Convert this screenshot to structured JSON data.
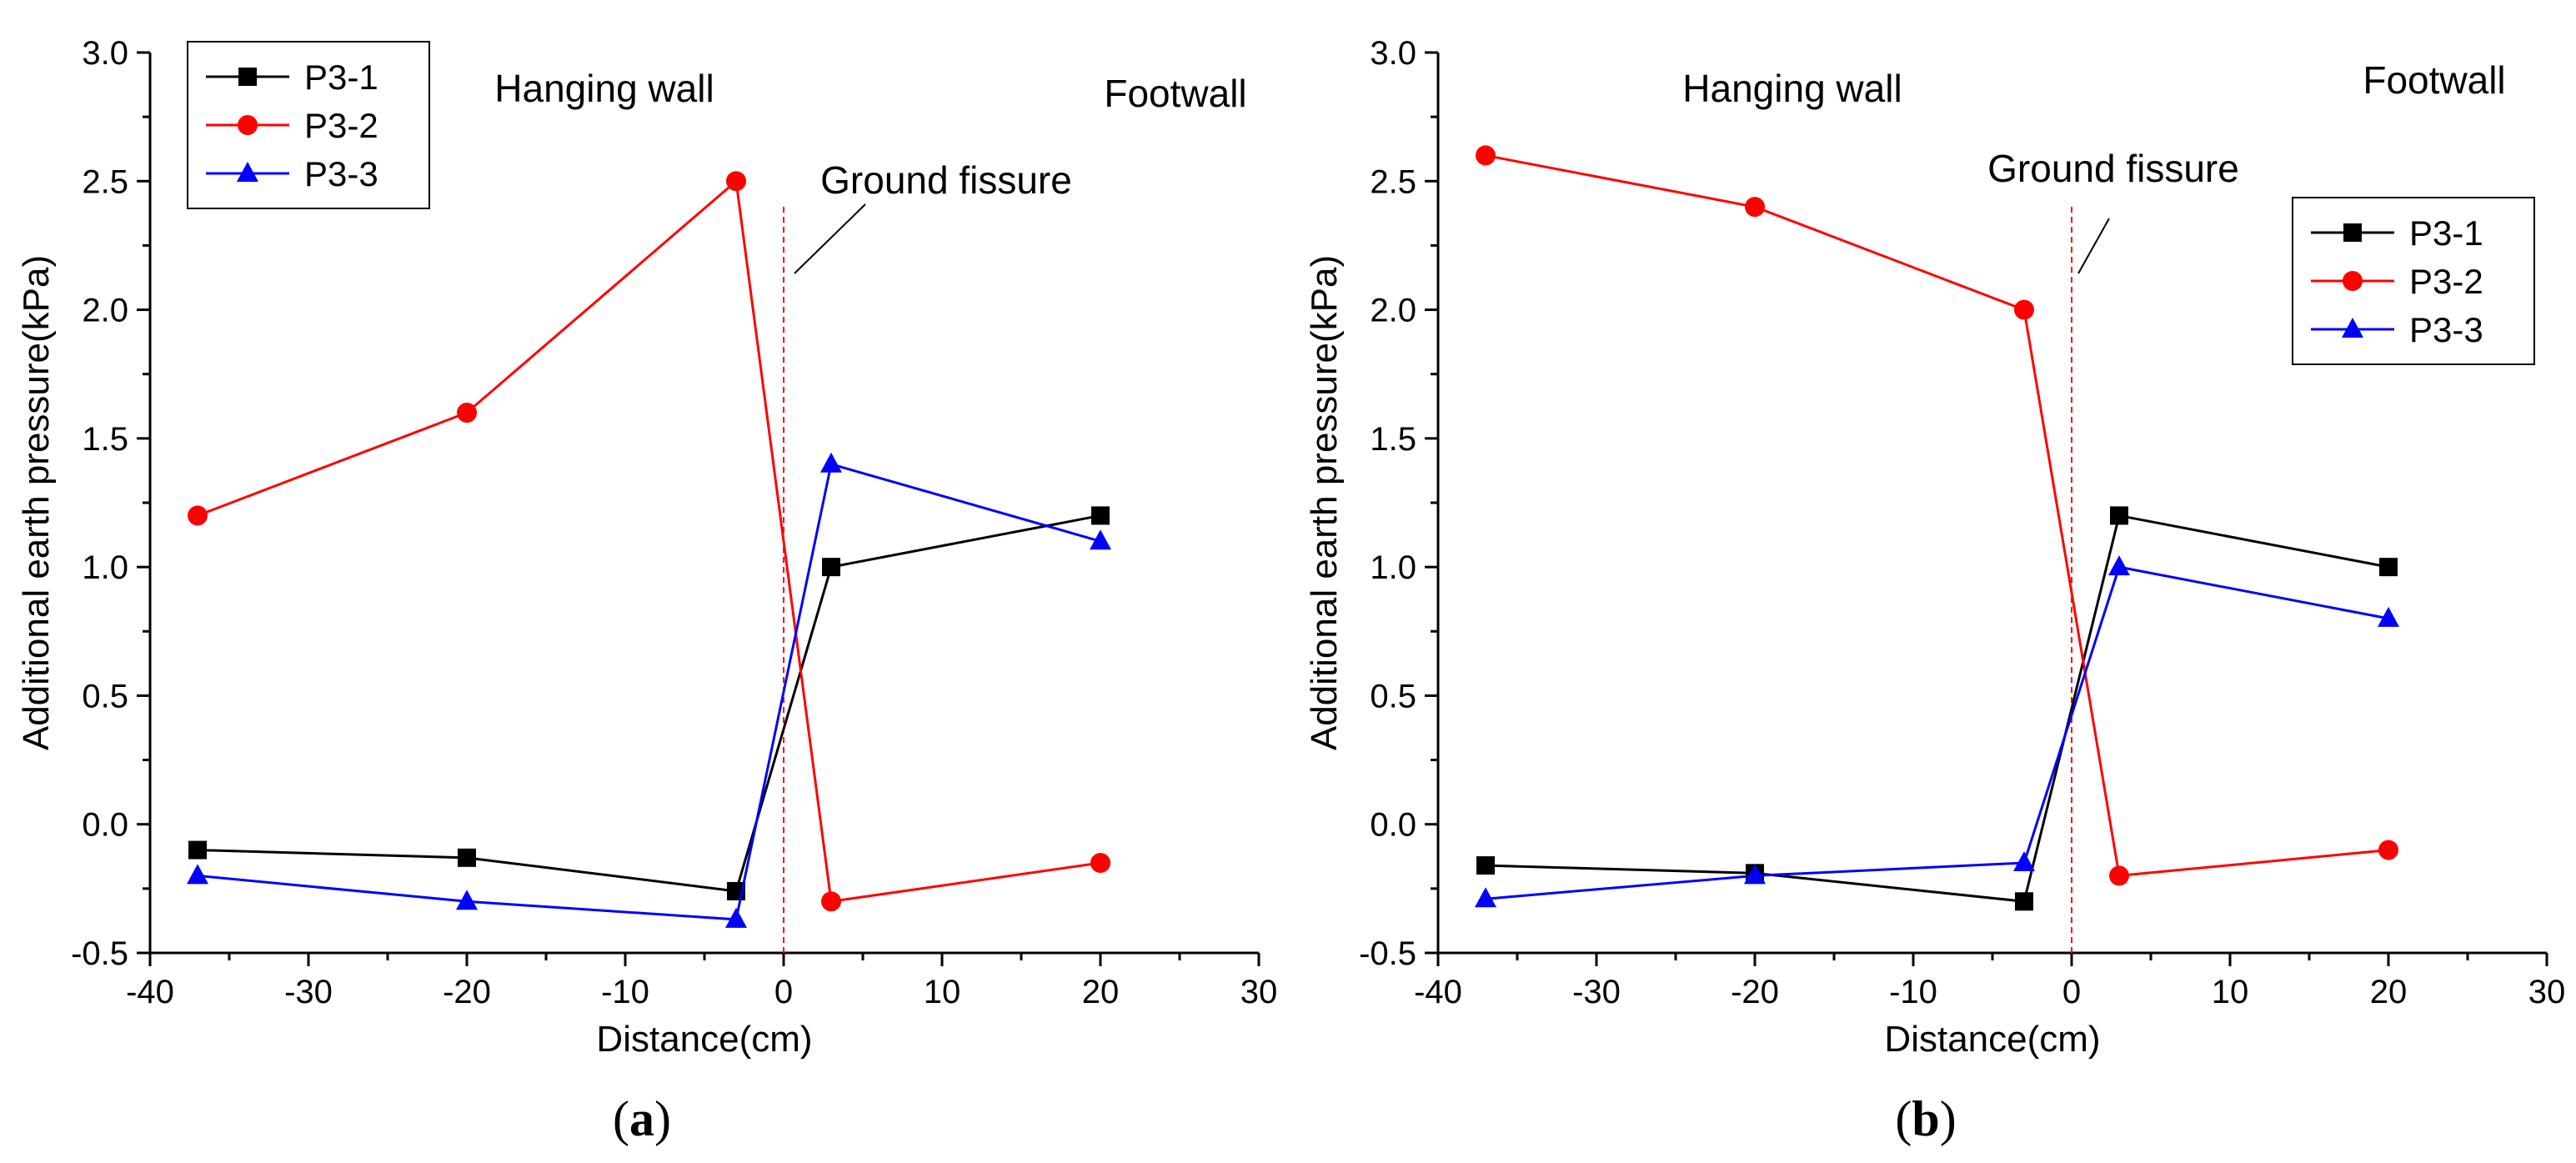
{
  "chart_data": [
    {
      "id": "a",
      "type": "line",
      "panel_label": "a",
      "xlabel": "Distance(cm)",
      "ylabel": "Additional earth pressure(kPa)",
      "xlim": [
        -40,
        30
      ],
      "ylim": [
        -0.5,
        3.0
      ],
      "x_ticks": [
        "-40",
        "-30",
        "-20",
        "-10",
        "0",
        "10",
        "20",
        "30"
      ],
      "y_ticks": [
        "-0.5",
        "0.0",
        "0.5",
        "1.0",
        "1.5",
        "2.0",
        "2.5",
        "3.0"
      ],
      "x_tick_values": [
        -40,
        -30,
        -20,
        -10,
        0,
        10,
        20,
        30
      ],
      "y_tick_values": [
        -0.5,
        0.0,
        0.5,
        1.0,
        1.5,
        2.0,
        2.5,
        3.0
      ],
      "legend_position": "top-left",
      "annotations": {
        "hanging_wall": "Hanging wall",
        "footwall": "Footwall",
        "ground_fissure": "Ground fissure"
      },
      "fissure_x": 0,
      "series": [
        {
          "name": "P3-1",
          "color": "#000000",
          "marker": "square",
          "x": [
            -37,
            -20,
            -3,
            3,
            20
          ],
          "y": [
            -0.1,
            -0.13,
            -0.26,
            1.0,
            1.2
          ]
        },
        {
          "name": "P3-2",
          "color": "#ff0000",
          "marker": "circle",
          "x": [
            -37,
            -20,
            -3,
            3,
            20
          ],
          "y": [
            1.2,
            1.6,
            2.5,
            -0.3,
            -0.15
          ]
        },
        {
          "name": "P3-3",
          "color": "#0000ff",
          "marker": "triangle",
          "x": [
            -37,
            -20,
            -3,
            3,
            20
          ],
          "y": [
            -0.2,
            -0.3,
            -0.37,
            1.4,
            1.1
          ]
        }
      ]
    },
    {
      "id": "b",
      "type": "line",
      "panel_label": "b",
      "xlabel": "Distance(cm)",
      "ylabel": "Additional earth pressure(kPa)",
      "xlim": [
        -40,
        30
      ],
      "ylim": [
        -0.5,
        3.0
      ],
      "x_ticks": [
        "-40",
        "-30",
        "-20",
        "-10",
        "0",
        "10",
        "20",
        "30"
      ],
      "y_ticks": [
        "-0.5",
        "0.0",
        "0.5",
        "1.0",
        "1.5",
        "2.0",
        "2.5",
        "3.0"
      ],
      "x_tick_values": [
        -40,
        -30,
        -20,
        -10,
        0,
        10,
        20,
        30
      ],
      "y_tick_values": [
        -0.5,
        0.0,
        0.5,
        1.0,
        1.5,
        2.0,
        2.5,
        3.0
      ],
      "legend_position": "right",
      "annotations": {
        "hanging_wall": "Hanging wall",
        "footwall": "Footwall",
        "ground_fissure": "Ground fissure"
      },
      "fissure_x": 0,
      "series": [
        {
          "name": "P3-1",
          "color": "#000000",
          "marker": "square",
          "x": [
            -37,
            -20,
            -3,
            3,
            20
          ],
          "y": [
            -0.16,
            -0.19,
            -0.3,
            1.2,
            1.0
          ]
        },
        {
          "name": "P3-2",
          "color": "#ff0000",
          "marker": "circle",
          "x": [
            -37,
            -20,
            -3,
            3,
            20
          ],
          "y": [
            2.6,
            2.4,
            2.0,
            -0.2,
            -0.1
          ]
        },
        {
          "name": "P3-3",
          "color": "#0000ff",
          "marker": "triangle",
          "x": [
            -37,
            -20,
            -3,
            3,
            20
          ],
          "y": [
            -0.29,
            -0.2,
            -0.15,
            1.0,
            0.8
          ]
        }
      ]
    }
  ]
}
